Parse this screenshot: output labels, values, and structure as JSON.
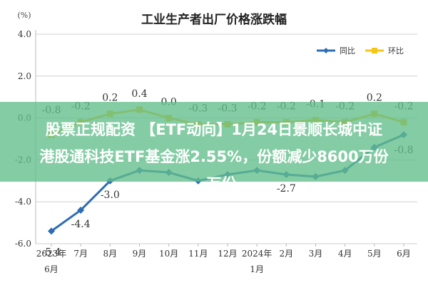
{
  "chart_data": {
    "type": "line",
    "title": "工业生产者出厂价格涨跌幅",
    "ylabel": "(%)",
    "ylim": [
      -6.0,
      4.0
    ],
    "yticks": [
      "4.0",
      "2.0",
      "0.0",
      "-2.0",
      "-4.0",
      "-6.0"
    ],
    "categories": [
      [
        "2023年",
        "6月"
      ],
      [
        "7月"
      ],
      [
        "8月"
      ],
      [
        "9月"
      ],
      [
        "10月"
      ],
      [
        "11月"
      ],
      [
        "12月"
      ],
      [
        "2024年",
        "1月"
      ],
      [
        "2月"
      ],
      [
        "3月"
      ],
      [
        "4月"
      ],
      [
        "5月"
      ],
      [
        "6月"
      ]
    ],
    "series": [
      {
        "name": "同比",
        "color": "#2e6db5",
        "values": [
          -5.4,
          -4.4,
          -3.0,
          -2.5,
          -2.6,
          -3.0,
          -2.7,
          -2.5,
          -2.7,
          -2.8,
          -2.5,
          -1.4,
          -0.8
        ],
        "labels": [
          "-5.4",
          "-4.4",
          "-3.0",
          "",
          "",
          "",
          "",
          "",
          "-2.7",
          "",
          "",
          "",
          "-0.8"
        ]
      },
      {
        "name": "环比",
        "color": "#f5c518",
        "values": [
          -0.8,
          -0.2,
          0.2,
          0.4,
          0.0,
          -0.3,
          -0.3,
          -0.2,
          -0.2,
          -0.1,
          -0.2,
          0.2,
          -0.2
        ],
        "labels": [
          "-0.8",
          "-0.2",
          "0.2",
          "0.4",
          "0.0",
          "-0.3",
          "-0.3",
          "-0.2",
          "-0.2",
          "-0.1",
          "-0.2",
          "0.2",
          "-0.2"
        ]
      }
    ],
    "grid": true,
    "legend": "top-right"
  },
  "overlay": {
    "lines": [
      "股票正规配资 【ETF动向】1月24日景顺长城中证",
      "港股通科技ETF基金涨2.55%，份额减少8600万份",
      "，万份"
    ]
  }
}
